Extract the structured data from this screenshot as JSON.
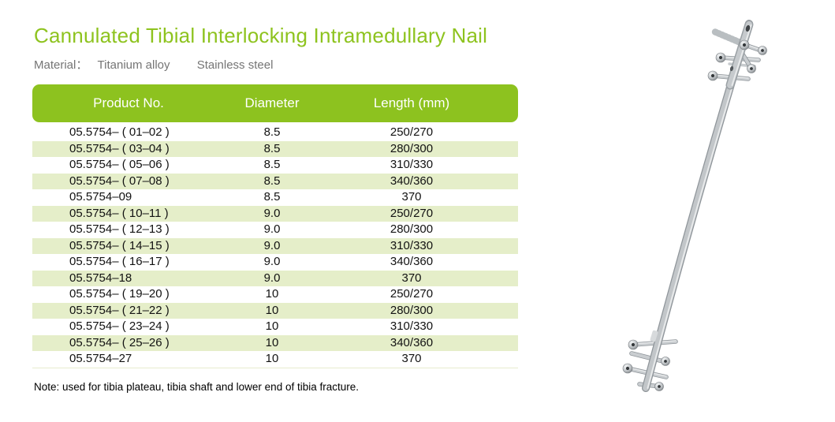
{
  "page": {
    "title": "Cannulated Tibial Interlocking Intramedullary Nail",
    "material_label": "Material：",
    "materials": [
      "Titanium alloy",
      "Stainless steel"
    ],
    "note": "Note: used for tibia plateau, tibia shaft and lower end of tibia fracture."
  },
  "table": {
    "columns": [
      "Product No.",
      "Diameter",
      "Length (mm)"
    ],
    "rows": [
      {
        "product_no": "05.5754– ( 01–02 )",
        "diameter": "8.5",
        "length": "250/270"
      },
      {
        "product_no": "05.5754– ( 03–04 )",
        "diameter": "8.5",
        "length": "280/300"
      },
      {
        "product_no": "05.5754– ( 05–06 )",
        "diameter": "8.5",
        "length": "310/330"
      },
      {
        "product_no": "05.5754– ( 07–08 )",
        "diameter": "8.5",
        "length": "340/360"
      },
      {
        "product_no": "05.5754–09",
        "diameter": "8.5",
        "length": "370"
      },
      {
        "product_no": "05.5754– ( 10–11 )",
        "diameter": "9.0",
        "length": "250/270"
      },
      {
        "product_no": "05.5754– ( 12–13 )",
        "diameter": "9.0",
        "length": "280/300"
      },
      {
        "product_no": "05.5754– ( 14–15 )",
        "diameter": "9.0",
        "length": "310/330"
      },
      {
        "product_no": "05.5754– ( 16–17 )",
        "diameter": "9.0",
        "length": "340/360"
      },
      {
        "product_no": "05.5754–18",
        "diameter": "9.0",
        "length": "370"
      },
      {
        "product_no": "05.5754– ( 19–20 )",
        "diameter": "10",
        "length": "250/270"
      },
      {
        "product_no": "05.5754– ( 21–22 )",
        "diameter": "10",
        "length": "280/300"
      },
      {
        "product_no": "05.5754– ( 23–24 )",
        "diameter": "10",
        "length": "310/330"
      },
      {
        "product_no": "05.5754– ( 25–26 )",
        "diameter": "10",
        "length": "340/360"
      },
      {
        "product_no": "05.5754–27",
        "diameter": "10",
        "length": "370"
      }
    ]
  },
  "image": {
    "label": "intramedullary-nail-with-locking-screws"
  },
  "colors": {
    "accent_green": "#8dc21f",
    "title_green": "#8ec31f",
    "row_stripe": "#e5eec9",
    "muted_gray": "#757575",
    "body_text": "#121212"
  }
}
